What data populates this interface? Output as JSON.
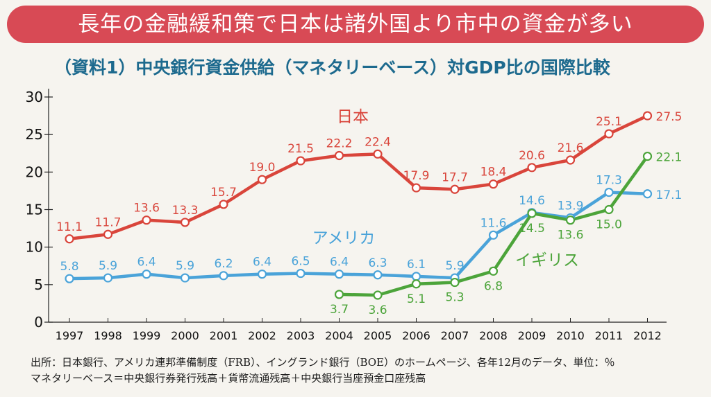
{
  "banner": {
    "title": "長年の金融緩和策で日本は諸外国より市中の資金が多い"
  },
  "chart_data": {
    "type": "line",
    "title": "（資料1）中央銀行資金供給（マネタリーベース）対GDP比の国際比較",
    "categories": [
      "1997",
      "1998",
      "1999",
      "2000",
      "2001",
      "2002",
      "2003",
      "2004",
      "2005",
      "2006",
      "2007",
      "2008",
      "2009",
      "2010",
      "2011",
      "2012"
    ],
    "ylim": [
      0,
      30
    ],
    "yticks": [
      0,
      5,
      10,
      15,
      20,
      25,
      30
    ],
    "grid": false,
    "series": [
      {
        "name": "日本",
        "color": "#d9453b",
        "values": [
          11.1,
          11.7,
          13.6,
          13.3,
          15.7,
          19.0,
          21.5,
          22.2,
          22.4,
          17.9,
          17.7,
          18.4,
          20.6,
          21.6,
          25.1,
          27.5
        ],
        "labels": [
          "11.1",
          "11.7",
          "13.6",
          "13.3",
          "15.7",
          "19.0",
          "21.5",
          "22.2",
          "22.4",
          "17.9",
          "17.7",
          "18.4",
          "20.6",
          "21.6",
          "25.1",
          "27.5"
        ],
        "label_pos": [
          "above",
          "above",
          "above",
          "above",
          "above",
          "above",
          "above",
          "above",
          "above",
          "above",
          "above",
          "above",
          "above",
          "above",
          "above",
          "right"
        ]
      },
      {
        "name": "アメリカ",
        "color": "#4aa3d9",
        "values": [
          5.8,
          5.9,
          6.4,
          5.9,
          6.2,
          6.4,
          6.5,
          6.4,
          6.3,
          6.1,
          5.9,
          11.6,
          14.6,
          13.9,
          17.3,
          17.1
        ],
        "labels": [
          "5.8",
          "5.9",
          "6.4",
          "5.9",
          "6.2",
          "6.4",
          "6.5",
          "6.4",
          "6.3",
          "6.1",
          "5.9",
          "11.6",
          "14.6",
          "13.9",
          "17.3",
          "17.1"
        ],
        "label_pos": [
          "above",
          "above",
          "above",
          "above",
          "above",
          "above",
          "above",
          "above",
          "above",
          "above",
          "above",
          "above",
          "above",
          "above",
          "above",
          "right"
        ]
      },
      {
        "name": "イギリス",
        "color": "#4ca43a",
        "values": [
          null,
          null,
          null,
          null,
          null,
          null,
          null,
          3.7,
          3.6,
          5.1,
          5.3,
          6.8,
          14.5,
          13.6,
          15.0,
          22.1
        ],
        "labels": [
          "",
          "",
          "",
          "",
          "",
          "",
          "",
          "3.7",
          "3.6",
          "5.1",
          "5.3",
          "6.8",
          "14.5",
          "13.6",
          "15.0",
          "22.1"
        ],
        "label_pos": [
          "",
          "",
          "",
          "",
          "",
          "",
          "",
          "below",
          "below",
          "below",
          "below",
          "below",
          "below",
          "below",
          "below",
          "right"
        ]
      }
    ],
    "footnotes": [
      "出所：日本銀行、アメリカ連邦準備制度（FRB）、イングランド銀行（BOE）のホームページ、各年12月のデータ、単位：％",
      "マネタリーベース＝中央銀行券発行残高＋貨幣流通残高＋中央銀行当座預金口座残高"
    ]
  }
}
